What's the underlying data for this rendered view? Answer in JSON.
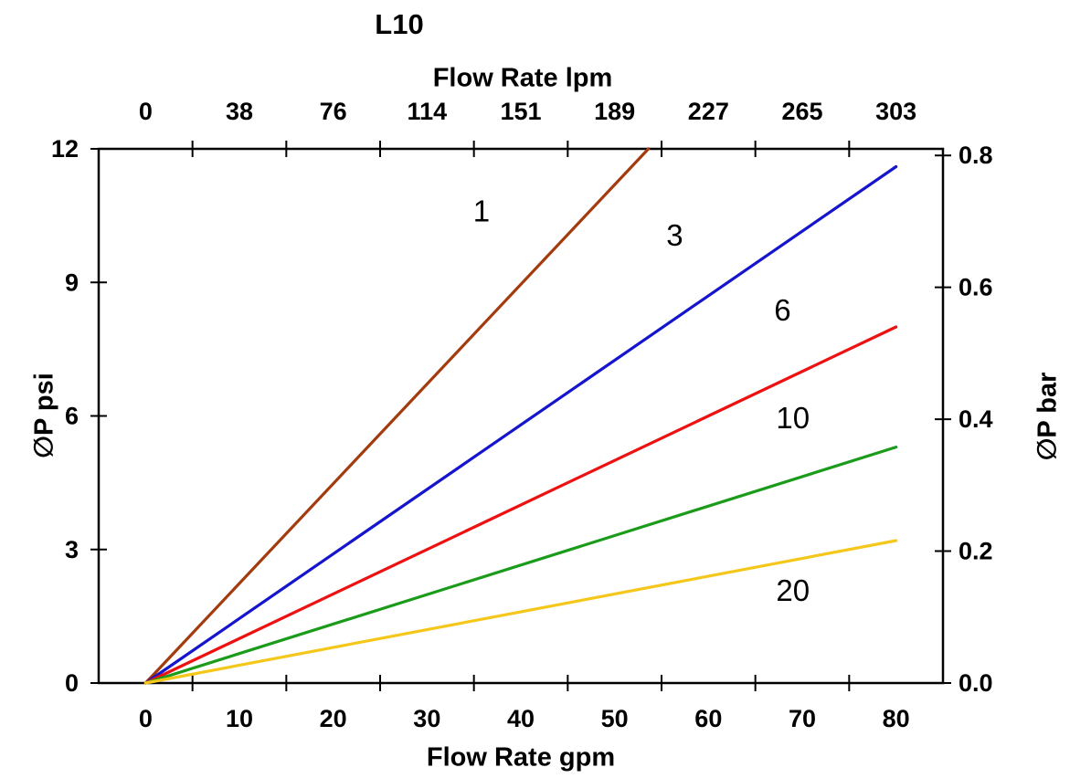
{
  "chart_data": {
    "type": "line",
    "title": "L10",
    "background": "#ffffff",
    "axis_color": "#000000",
    "axes": {
      "x_bottom": {
        "label": "Flow Rate gpm",
        "tick_labels": [
          "0",
          "10",
          "20",
          "30",
          "40",
          "50",
          "60",
          "70",
          "80"
        ],
        "tick_positions": [
          0,
          10,
          20,
          30,
          40,
          50,
          60,
          70,
          80
        ],
        "minor_tick_positions": [
          5,
          15,
          25,
          35,
          45,
          55,
          65,
          75
        ],
        "range": [
          -5,
          85
        ]
      },
      "x_top": {
        "label": "Flow Rate lpm",
        "tick_labels": [
          "0",
          "38",
          "76",
          "114",
          "151",
          "189",
          "227",
          "265",
          "303"
        ],
        "tick_positions": [
          0,
          10,
          20,
          30,
          40,
          50,
          60,
          70,
          80
        ],
        "minor_tick_positions": [
          5,
          15,
          25,
          35,
          45,
          55,
          65,
          75
        ]
      },
      "y_left": {
        "label": "∅P psi",
        "tick_labels": [
          "0",
          "3",
          "6",
          "9",
          "12"
        ],
        "tick_positions": [
          0,
          3,
          6,
          9,
          12
        ],
        "range": [
          0,
          12
        ]
      },
      "y_right": {
        "label": "∅P bar",
        "tick_labels": [
          "0.0",
          "0.2",
          "0.4",
          "0.6",
          "0.8"
        ],
        "tick_positions": [
          0,
          0.2,
          0.4,
          0.6,
          0.8
        ],
        "range": [
          0,
          0.81
        ]
      }
    },
    "series": [
      {
        "name": "1",
        "color": "#a33b0f",
        "points": [
          [
            0,
            0
          ],
          [
            53.6,
            12
          ]
        ],
        "label": "1",
        "label_at": [
          35.8,
          10.6
        ]
      },
      {
        "name": "3",
        "color": "#1515cd",
        "points": [
          [
            0,
            0
          ],
          [
            80,
            11.6
          ]
        ],
        "label": "3",
        "label_at": [
          56.4,
          10.05
        ]
      },
      {
        "name": "6",
        "color": "#ee1111",
        "points": [
          [
            0,
            0
          ],
          [
            80,
            8.0
          ]
        ],
        "label": "6",
        "label_at": [
          67.9,
          8.37
        ]
      },
      {
        "name": "10",
        "color": "#1a9c1a",
        "points": [
          [
            0,
            0
          ],
          [
            80,
            5.3
          ]
        ],
        "label": "10",
        "label_at": [
          69,
          5.95
        ]
      },
      {
        "name": "20",
        "color": "#f5c71a",
        "points": [
          [
            0,
            0
          ],
          [
            80,
            3.2
          ]
        ],
        "label": "20",
        "label_at": [
          69,
          2.07
        ]
      }
    ]
  }
}
